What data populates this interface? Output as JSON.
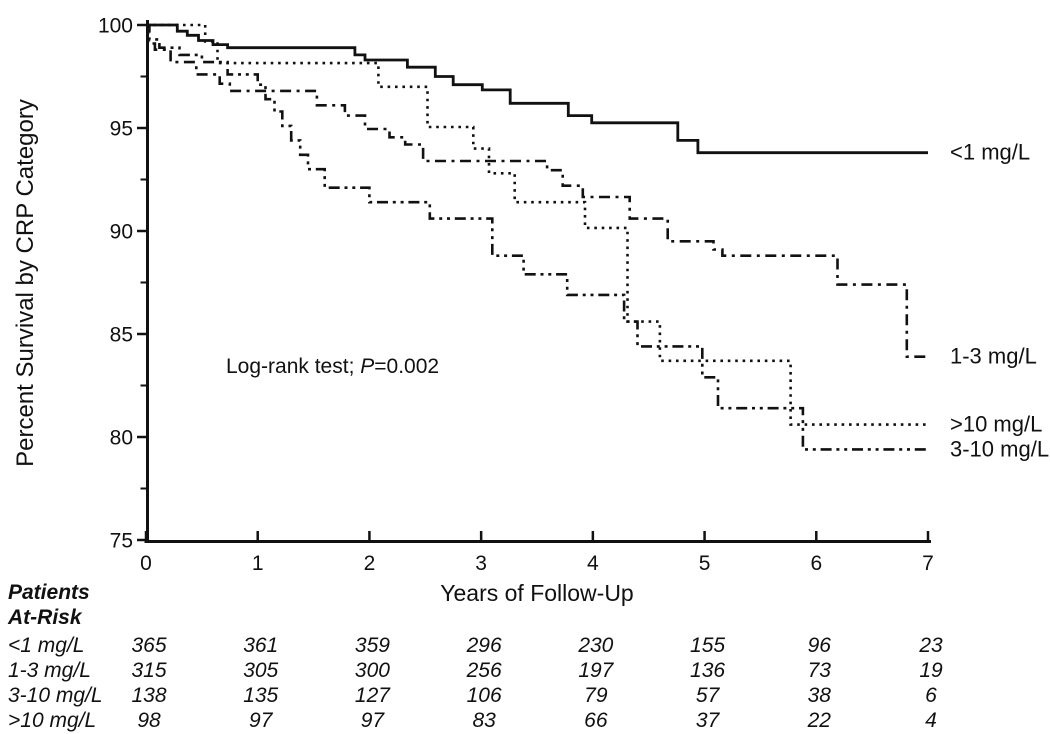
{
  "figure": {
    "background": "#ffffff",
    "ink_color": "#111111"
  },
  "chart_data": {
    "type": "line",
    "subtype": "kaplan-meier-step",
    "title": "",
    "xlabel": "Years of Follow-Up",
    "ylabel": "Percent Survival by CRP Category",
    "xlim": [
      0,
      7
    ],
    "ylim": [
      75,
      100
    ],
    "x_ticks": [
      0,
      1,
      2,
      3,
      4,
      5,
      6,
      7
    ],
    "y_ticks": [
      75,
      80,
      85,
      90,
      95,
      100
    ],
    "y_minor_ticks": [
      77.5,
      82.5,
      87.5,
      92.5,
      97.5
    ],
    "grid": false,
    "legend_position": "right-of-curve-ends",
    "annotation": {
      "prefix": "Log-rank test; ",
      "p": "P",
      "suffix": "=0.002"
    },
    "series": [
      {
        "name": "crp-lt1",
        "label": "<1 mg/L",
        "line_style": "solid",
        "end_x": 7.0,
        "steps": [
          [
            0,
            100
          ],
          [
            0.28,
            99.7
          ],
          [
            0.37,
            99.5
          ],
          [
            0.47,
            99.25
          ],
          [
            0.6,
            99.05
          ],
          [
            0.73,
            98.9
          ],
          [
            1.87,
            98.55
          ],
          [
            1.96,
            98.3
          ],
          [
            2.34,
            97.95
          ],
          [
            2.59,
            97.5
          ],
          [
            2.75,
            97.1
          ],
          [
            3.01,
            96.85
          ],
          [
            3.26,
            96.2
          ],
          [
            3.78,
            95.6
          ],
          [
            3.99,
            95.25
          ],
          [
            4.76,
            94.4
          ],
          [
            4.94,
            93.8
          ]
        ]
      },
      {
        "name": "crp-1to3",
        "label": "1-3 mg/L",
        "line_style": "dash-dot",
        "end_x": 7.02,
        "steps": [
          [
            0,
            100
          ],
          [
            0.02,
            99.1
          ],
          [
            0.08,
            98.8
          ],
          [
            0.22,
            98.2
          ],
          [
            0.45,
            97.6
          ],
          [
            0.66,
            97.15
          ],
          [
            0.75,
            96.8
          ],
          [
            1.53,
            96.1
          ],
          [
            1.78,
            95.6
          ],
          [
            1.96,
            94.95
          ],
          [
            2.18,
            94.55
          ],
          [
            2.32,
            94.2
          ],
          [
            2.48,
            93.4
          ],
          [
            3.59,
            92.95
          ],
          [
            3.73,
            92.2
          ],
          [
            3.91,
            91.65
          ],
          [
            4.33,
            90.6
          ],
          [
            4.67,
            89.5
          ],
          [
            5.08,
            89.1
          ],
          [
            5.16,
            88.8
          ],
          [
            6.19,
            87.4
          ],
          [
            6.81,
            83.9
          ]
        ]
      },
      {
        "name": "crp-3to10",
        "label": "3-10 mg/L",
        "line_style": "dash-dot-dot",
        "end_x": 6.98,
        "steps": [
          [
            0,
            100
          ],
          [
            0.03,
            99.3
          ],
          [
            0.12,
            98.9
          ],
          [
            0.3,
            98.55
          ],
          [
            0.5,
            98.2
          ],
          [
            0.73,
            97.6
          ],
          [
            1.0,
            97.1
          ],
          [
            1.07,
            96.4
          ],
          [
            1.15,
            95.8
          ],
          [
            1.22,
            95.1
          ],
          [
            1.3,
            94.4
          ],
          [
            1.38,
            93.7
          ],
          [
            1.45,
            93.0
          ],
          [
            1.6,
            92.1
          ],
          [
            2.0,
            91.4
          ],
          [
            2.54,
            90.6
          ],
          [
            3.1,
            88.8
          ],
          [
            3.38,
            87.9
          ],
          [
            3.77,
            86.9
          ],
          [
            4.28,
            85.6
          ],
          [
            4.4,
            84.4
          ],
          [
            4.98,
            82.9
          ],
          [
            5.12,
            81.4
          ],
          [
            5.88,
            79.4
          ]
        ]
      },
      {
        "name": "crp-gt10",
        "label": ">10 mg/L",
        "line_style": "dotted",
        "end_x": 6.99,
        "steps": [
          [
            0,
            100
          ],
          [
            0.53,
            99.2
          ],
          [
            0.64,
            98.15
          ],
          [
            2.08,
            97.0
          ],
          [
            2.52,
            95.05
          ],
          [
            2.93,
            94.0
          ],
          [
            3.07,
            92.8
          ],
          [
            3.3,
            91.4
          ],
          [
            3.93,
            90.15
          ],
          [
            4.31,
            85.6
          ],
          [
            4.6,
            83.7
          ],
          [
            5.77,
            80.6
          ]
        ]
      }
    ]
  },
  "risk_table": {
    "header": [
      "Patients",
      "At-Risk"
    ],
    "time_points": [
      0,
      1,
      2,
      3,
      4,
      5,
      6,
      7
    ],
    "rows": [
      {
        "label": "<1 mg/L",
        "counts": [
          365,
          361,
          359,
          296,
          230,
          155,
          96,
          23
        ]
      },
      {
        "label": "1-3 mg/L",
        "counts": [
          315,
          305,
          300,
          256,
          197,
          136,
          73,
          19
        ]
      },
      {
        "label": "3-10 mg/L",
        "counts": [
          138,
          135,
          127,
          106,
          79,
          57,
          38,
          6
        ]
      },
      {
        "label": ">10 mg/L",
        "counts": [
          98,
          97,
          97,
          83,
          66,
          37,
          22,
          4
        ]
      }
    ]
  }
}
